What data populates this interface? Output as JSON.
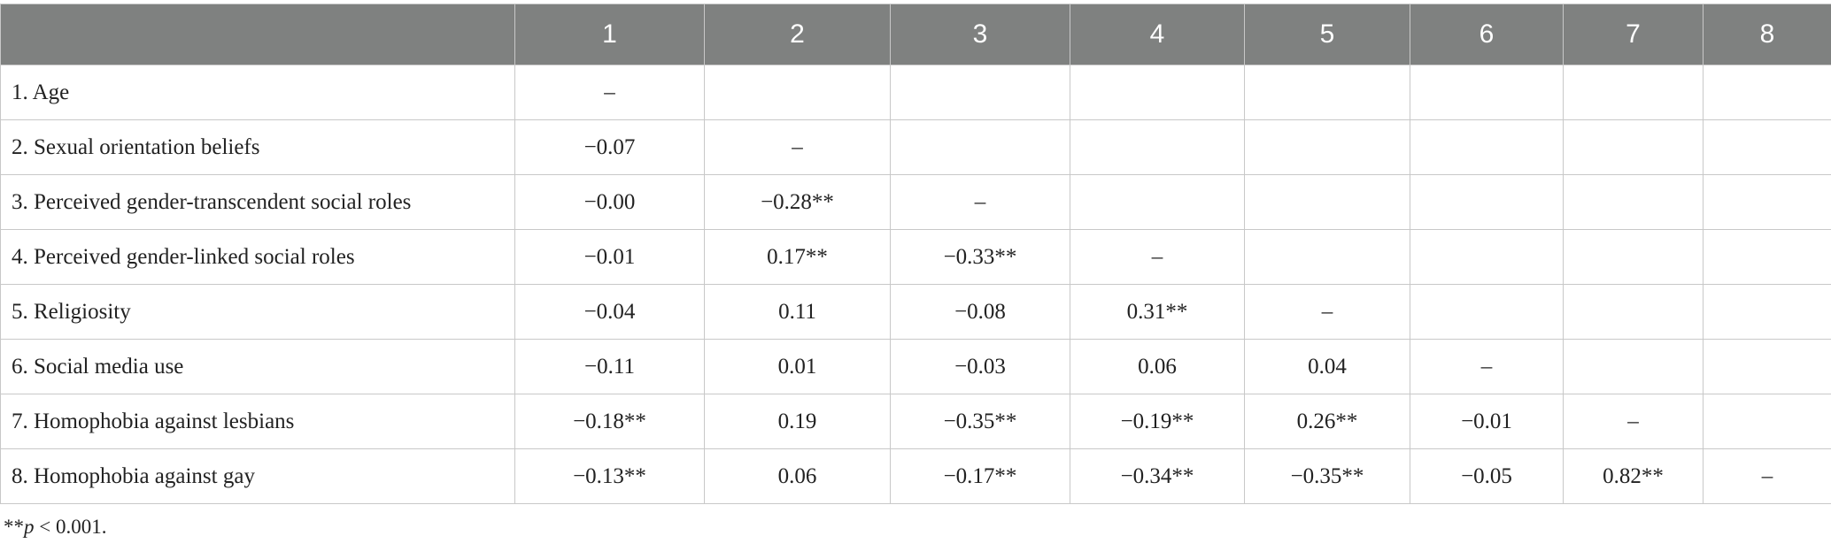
{
  "table": {
    "columns": [
      "1",
      "2",
      "3",
      "4",
      "5",
      "6",
      "7",
      "8"
    ],
    "rows": [
      {
        "label": "1. Age",
        "cells": [
          "–"
        ]
      },
      {
        "label": "2. Sexual orientation beliefs",
        "cells": [
          "−0.07",
          "–"
        ]
      },
      {
        "label": "3. Perceived gender-transcendent social roles",
        "cells": [
          "−0.00",
          "−0.28**",
          "–"
        ]
      },
      {
        "label": "4. Perceived gender-linked social roles",
        "cells": [
          "−0.01",
          "0.17**",
          "−0.33**",
          "–"
        ]
      },
      {
        "label": "5. Religiosity",
        "cells": [
          "−0.04",
          "0.11",
          "−0.08",
          "0.31**",
          "–"
        ]
      },
      {
        "label": "6. Social media use",
        "cells": [
          "−0.11",
          "0.01",
          "−0.03",
          "0.06",
          "0.04",
          "–"
        ]
      },
      {
        "label": "7. Homophobia against lesbians",
        "cells": [
          "−0.18**",
          "0.19",
          "−0.35**",
          "−0.19**",
          "0.26**",
          "−0.01",
          "–"
        ]
      },
      {
        "label": "8. Homophobia against gay",
        "cells": [
          "−0.13**",
          "0.06",
          "−0.17**",
          "−0.34**",
          "−0.35**",
          "−0.05",
          "0.82**",
          "–"
        ]
      }
    ]
  },
  "footnote": {
    "stars": "**",
    "p": "p",
    "rest": " < 0.001."
  }
}
